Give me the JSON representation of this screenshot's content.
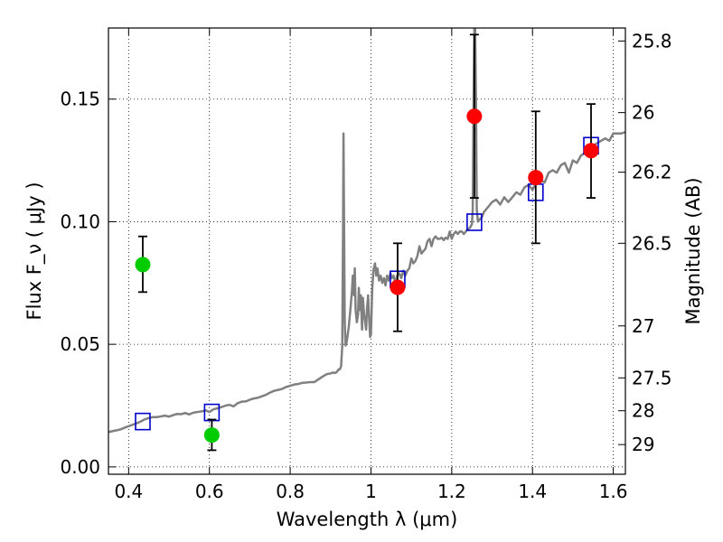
{
  "chart_data": {
    "type": "scatter",
    "xlabel": "Wavelength  λ (μm)",
    "ylabel": "Flux  F_ν  ( μJy )",
    "ylabel_right": "Magnitude (AB)",
    "xlim": [
      0.35,
      1.63
    ],
    "ylim": [
      -0.003,
      0.179
    ],
    "grid": true,
    "x_ticks": [
      0.4,
      0.6,
      0.8,
      1.0,
      1.2,
      1.4,
      1.6
    ],
    "x_tick_labels": [
      "0.4",
      "0.6",
      "0.8",
      "1",
      "1.2",
      "1.4",
      "1.6"
    ],
    "y_ticks": [
      0.0,
      0.05,
      0.1,
      0.15
    ],
    "y_tick_labels": [
      "0.00",
      "0.05",
      "0.10",
      "0.15"
    ],
    "y2_ticks": [
      {
        "label": "25.8",
        "flux": 0.1737
      },
      {
        "label": "26",
        "flux": 0.1445
      },
      {
        "label": "26.2",
        "flux": 0.1202
      },
      {
        "label": "26.5",
        "flux": 0.0912
      },
      {
        "label": "27",
        "flux": 0.0575
      },
      {
        "label": "27.5",
        "flux": 0.0363
      },
      {
        "label": "28",
        "flux": 0.0229
      },
      {
        "label": "29",
        "flux": 0.0091
      }
    ],
    "series": [
      {
        "kind": "model-spectrum",
        "color": "#808080",
        "points": [
          [
            0.35,
            0.0142
          ],
          [
            0.36,
            0.0146
          ],
          [
            0.37,
            0.0149
          ],
          [
            0.38,
            0.0153
          ],
          [
            0.39,
            0.016
          ],
          [
            0.4,
            0.0166
          ],
          [
            0.41,
            0.0172
          ],
          [
            0.42,
            0.0178
          ],
          [
            0.43,
            0.0185
          ],
          [
            0.44,
            0.0194
          ],
          [
            0.45,
            0.0199
          ],
          [
            0.46,
            0.0203
          ],
          [
            0.47,
            0.0203
          ],
          [
            0.48,
            0.0206
          ],
          [
            0.49,
            0.0209
          ],
          [
            0.5,
            0.0205
          ],
          [
            0.51,
            0.0211
          ],
          [
            0.52,
            0.0216
          ],
          [
            0.53,
            0.0215
          ],
          [
            0.54,
            0.022
          ],
          [
            0.55,
            0.0214
          ],
          [
            0.56,
            0.0221
          ],
          [
            0.57,
            0.0224
          ],
          [
            0.58,
            0.0226
          ],
          [
            0.59,
            0.0231
          ],
          [
            0.6,
            0.0224
          ],
          [
            0.61,
            0.0235
          ],
          [
            0.62,
            0.0239
          ],
          [
            0.63,
            0.0244
          ],
          [
            0.64,
            0.025
          ],
          [
            0.65,
            0.0253
          ],
          [
            0.66,
            0.0247
          ],
          [
            0.67,
            0.026
          ],
          [
            0.68,
            0.0266
          ],
          [
            0.69,
            0.0267
          ],
          [
            0.7,
            0.0274
          ],
          [
            0.71,
            0.0279
          ],
          [
            0.72,
            0.0282
          ],
          [
            0.73,
            0.0288
          ],
          [
            0.74,
            0.0294
          ],
          [
            0.75,
            0.0303
          ],
          [
            0.76,
            0.031
          ],
          [
            0.77,
            0.0314
          ],
          [
            0.78,
            0.0318
          ],
          [
            0.79,
            0.0326
          ],
          [
            0.8,
            0.0331
          ],
          [
            0.81,
            0.0336
          ],
          [
            0.82,
            0.0338
          ],
          [
            0.83,
            0.0343
          ],
          [
            0.84,
            0.0344
          ],
          [
            0.85,
            0.0346
          ],
          [
            0.86,
            0.0346
          ],
          [
            0.87,
            0.0357
          ],
          [
            0.88,
            0.0368
          ],
          [
            0.89,
            0.0378
          ],
          [
            0.9,
            0.0381
          ],
          [
            0.905,
            0.0385
          ],
          [
            0.91,
            0.0383
          ],
          [
            0.915,
            0.0386
          ],
          [
            0.92,
            0.0398
          ],
          [
            0.923,
            0.0398
          ],
          [
            0.926,
            0.041
          ],
          [
            0.929,
            0.0495
          ],
          [
            0.931,
            0.1
          ],
          [
            0.932,
            0.136
          ],
          [
            0.933,
            0.11
          ],
          [
            0.935,
            0.06
          ],
          [
            0.937,
            0.0495
          ],
          [
            0.94,
            0.051
          ],
          [
            0.945,
            0.057
          ],
          [
            0.95,
            0.066
          ],
          [
            0.953,
            0.072
          ],
          [
            0.955,
            0.078
          ],
          [
            0.958,
            0.07
          ],
          [
            0.96,
            0.081
          ],
          [
            0.962,
            0.064
          ],
          [
            0.965,
            0.059
          ],
          [
            0.968,
            0.062
          ],
          [
            0.97,
            0.073
          ],
          [
            0.972,
            0.064
          ],
          [
            0.975,
            0.07
          ],
          [
            0.978,
            0.056
          ],
          [
            0.98,
            0.069
          ],
          [
            0.983,
            0.062
          ],
          [
            0.985,
            0.06
          ],
          [
            0.988,
            0.056
          ],
          [
            0.99,
            0.064
          ],
          [
            0.993,
            0.07
          ],
          [
            0.995,
            0.062
          ],
          [
            0.998,
            0.053
          ],
          [
            1.0,
            0.054
          ],
          [
            1.003,
            0.072
          ],
          [
            1.006,
            0.08
          ],
          [
            1.01,
            0.083
          ],
          [
            1.013,
            0.078
          ],
          [
            1.016,
            0.081
          ],
          [
            1.02,
            0.076
          ],
          [
            1.024,
            0.078
          ],
          [
            1.028,
            0.075
          ],
          [
            1.032,
            0.077
          ],
          [
            1.036,
            0.074
          ],
          [
            1.04,
            0.078
          ],
          [
            1.044,
            0.076
          ],
          [
            1.048,
            0.079
          ],
          [
            1.052,
            0.077
          ],
          [
            1.056,
            0.078
          ],
          [
            1.06,
            0.075
          ],
          [
            1.065,
            0.078
          ],
          [
            1.07,
            0.079
          ],
          [
            1.075,
            0.077
          ],
          [
            1.08,
            0.08
          ],
          [
            1.085,
            0.078
          ],
          [
            1.09,
            0.08
          ],
          [
            1.095,
            0.081
          ],
          [
            1.1,
            0.085
          ],
          [
            1.105,
            0.083
          ],
          [
            1.11,
            0.084
          ],
          [
            1.115,
            0.086
          ],
          [
            1.12,
            0.09
          ],
          [
            1.125,
            0.087
          ],
          [
            1.13,
            0.088
          ],
          [
            1.135,
            0.089
          ],
          [
            1.14,
            0.092
          ],
          [
            1.145,
            0.093
          ],
          [
            1.15,
            0.09
          ],
          [
            1.155,
            0.093
          ],
          [
            1.16,
            0.094
          ],
          [
            1.165,
            0.093
          ],
          [
            1.17,
            0.093
          ],
          [
            1.175,
            0.0935
          ],
          [
            1.18,
            0.0925
          ],
          [
            1.185,
            0.0935
          ],
          [
            1.19,
            0.093
          ],
          [
            1.195,
            0.096
          ],
          [
            1.2,
            0.093
          ],
          [
            1.205,
            0.095
          ],
          [
            1.21,
            0.096
          ],
          [
            1.215,
            0.095
          ],
          [
            1.22,
            0.096
          ],
          [
            1.225,
            0.096
          ],
          [
            1.23,
            0.095
          ],
          [
            1.235,
            0.096
          ],
          [
            1.24,
            0.097
          ],
          [
            1.245,
            0.0975
          ],
          [
            1.25,
            0.099
          ],
          [
            1.252,
            0.105
          ],
          [
            1.254,
            0.15
          ],
          [
            1.256,
            0.179
          ],
          [
            1.258,
            0.179
          ],
          [
            1.26,
            0.15
          ],
          [
            1.262,
            0.105
          ],
          [
            1.265,
            0.1
          ],
          [
            1.27,
            0.101
          ],
          [
            1.275,
            0.102
          ],
          [
            1.28,
            0.104
          ],
          [
            1.29,
            0.106
          ],
          [
            1.3,
            0.108
          ],
          [
            1.31,
            0.109
          ],
          [
            1.32,
            0.107
          ],
          [
            1.33,
            0.11
          ],
          [
            1.34,
            0.108
          ],
          [
            1.35,
            0.11
          ],
          [
            1.36,
            0.112
          ],
          [
            1.37,
            0.111
          ],
          [
            1.38,
            0.114
          ],
          [
            1.39,
            0.115
          ],
          [
            1.4,
            0.113
          ],
          [
            1.41,
            0.116
          ],
          [
            1.42,
            0.117
          ],
          [
            1.43,
            0.116
          ],
          [
            1.44,
            0.12
          ],
          [
            1.45,
            0.121
          ],
          [
            1.46,
            0.12
          ],
          [
            1.47,
            0.123
          ],
          [
            1.48,
            0.124
          ],
          [
            1.49,
            0.12
          ],
          [
            1.5,
            0.125
          ],
          [
            1.51,
            0.124
          ],
          [
            1.52,
            0.127
          ],
          [
            1.53,
            0.128
          ],
          [
            1.54,
            0.13
          ],
          [
            1.55,
            0.131
          ],
          [
            1.56,
            0.132
          ],
          [
            1.57,
            0.133
          ],
          [
            1.58,
            0.134
          ],
          [
            1.59,
            0.133
          ],
          [
            1.6,
            0.136
          ],
          [
            1.61,
            0.136
          ],
          [
            1.62,
            0.136
          ],
          [
            1.63,
            0.1365
          ]
        ]
      },
      {
        "kind": "model-photometry",
        "marker": "open-square",
        "color": "#0000cc",
        "points": [
          {
            "x": 0.435,
            "y": 0.0185
          },
          {
            "x": 0.606,
            "y": 0.0222
          },
          {
            "x": 1.066,
            "y": 0.0765
          },
          {
            "x": 1.256,
            "y": 0.0998
          },
          {
            "x": 1.408,
            "y": 0.112
          },
          {
            "x": 1.545,
            "y": 0.131
          }
        ]
      },
      {
        "kind": "detections",
        "marker": "filled-circle",
        "color": "#ff0000",
        "points": [
          {
            "x": 1.066,
            "y": 0.0732,
            "lo": 0.0553,
            "hi": 0.0912
          },
          {
            "x": 1.256,
            "y": 0.143,
            "lo": 0.1097,
            "hi": 0.1763
          },
          {
            "x": 1.408,
            "y": 0.118,
            "lo": 0.0912,
            "hi": 0.145
          },
          {
            "x": 1.545,
            "y": 0.129,
            "lo": 0.1097,
            "hi": 0.148
          }
        ]
      },
      {
        "kind": "low-sn",
        "marker": "filled-circle",
        "color": "#00cc00",
        "points": [
          {
            "x": 0.435,
            "y": 0.0825,
            "lo": 0.0713,
            "hi": 0.094
          },
          {
            "x": 0.606,
            "y": 0.013,
            "lo": 0.0068,
            "hi": 0.0193
          }
        ]
      }
    ]
  }
}
